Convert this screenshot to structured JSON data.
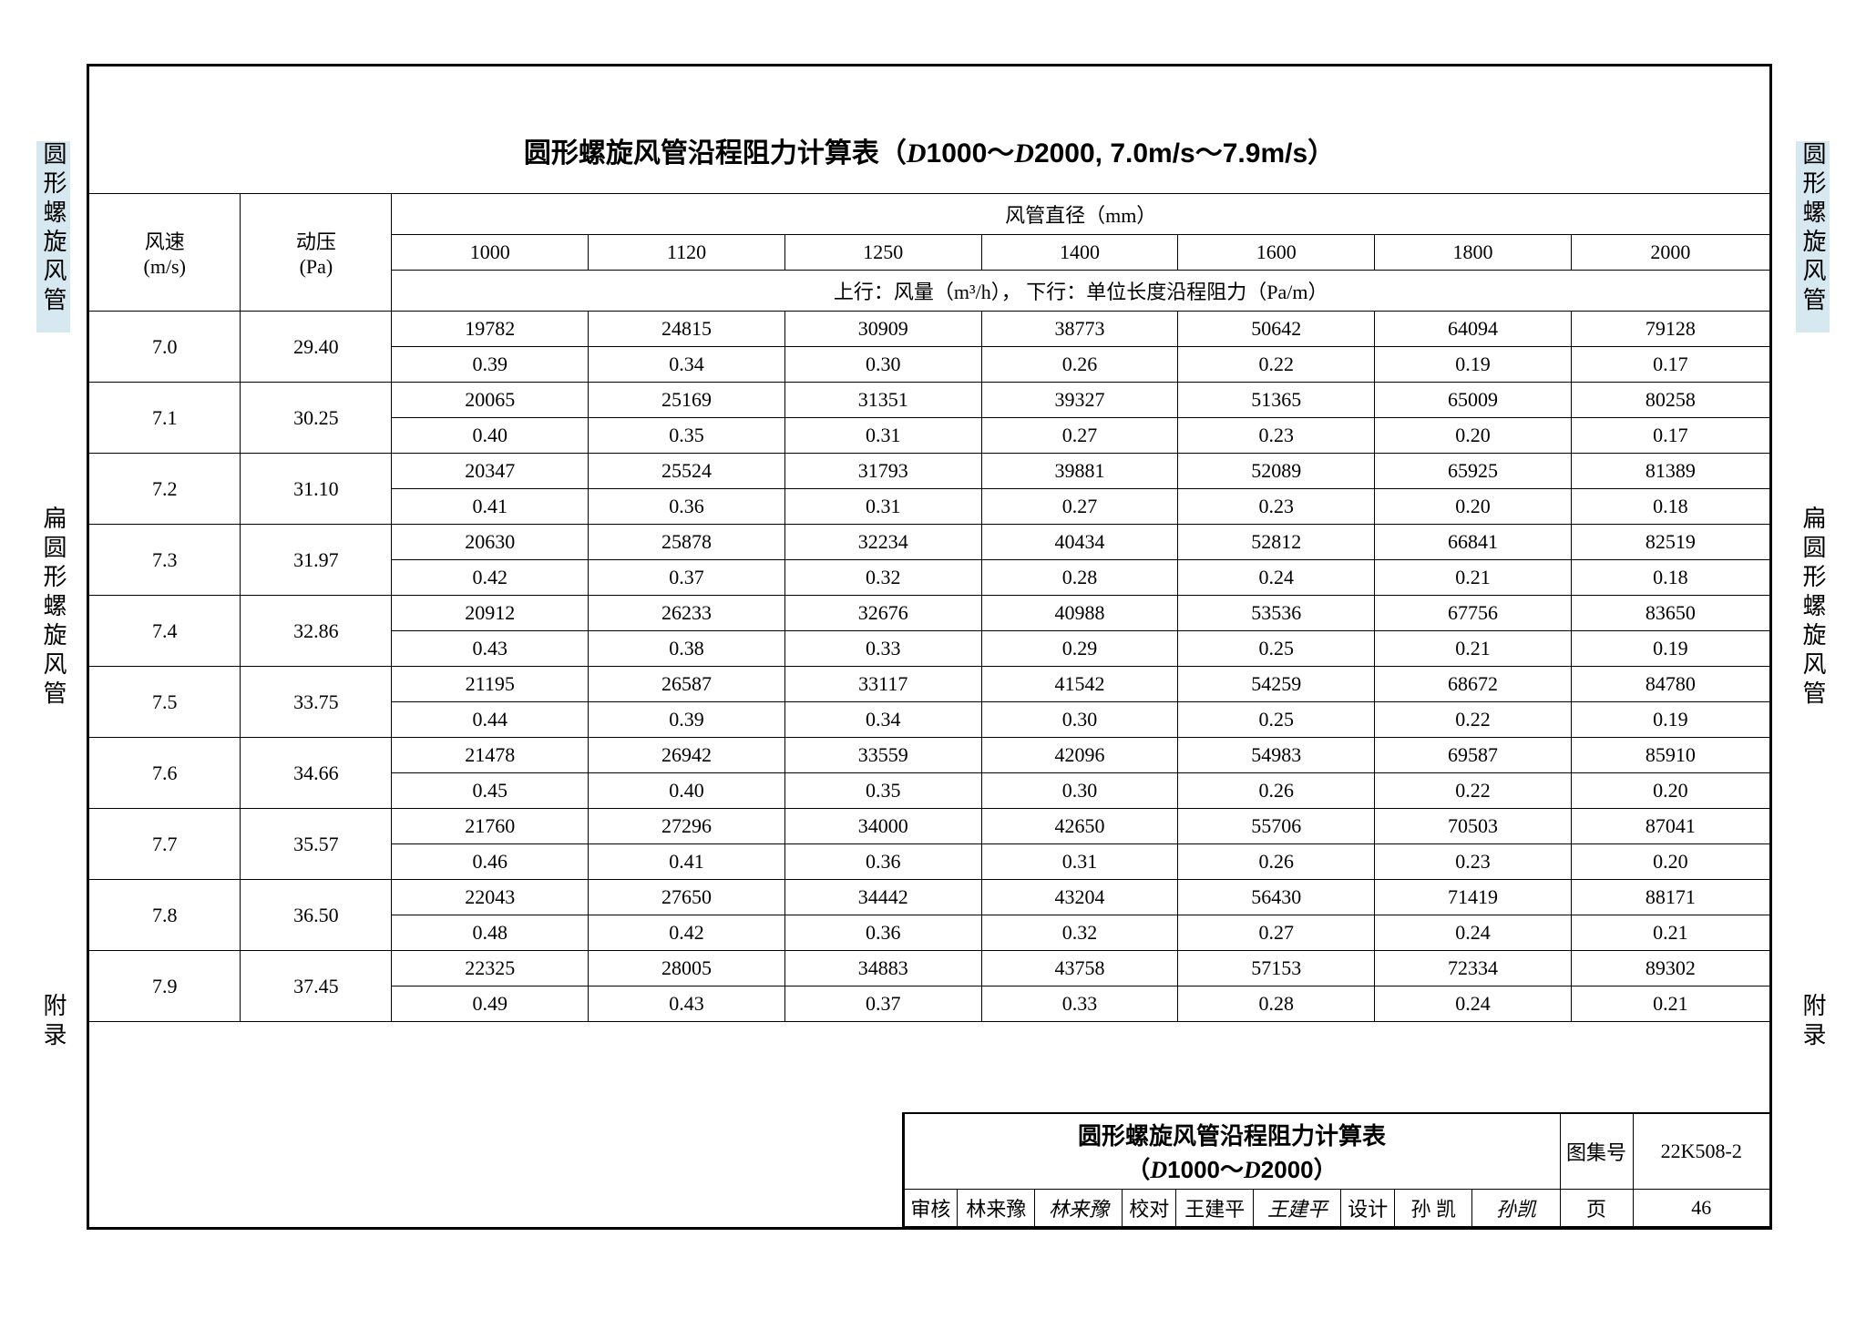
{
  "title_prefix": "圆形螺旋风管沿程阻力计算表（",
  "title_d1": "D",
  "title_mid1": "1000～",
  "title_d2": "D",
  "title_mid2": "2000, 7.0m/s～7.9m/s）",
  "side_labels": {
    "l1": "圆形螺旋风管",
    "l2": "扁圆形螺旋风管",
    "l3": "附录",
    "r1": "圆形螺旋风管",
    "r2": "扁圆形螺旋风管",
    "r3": "附录"
  },
  "headers": {
    "wind_speed": "风速",
    "wind_speed_unit": "(m/s)",
    "dyn_pressure": "动压",
    "dyn_pressure_unit": "(Pa)",
    "diameter_header": "风管直径（mm）",
    "sub_header": "上行：风量（m³/h），  下行：单位长度沿程阻力（Pa/m）",
    "diameters": [
      "1000",
      "1120",
      "1250",
      "1400",
      "1600",
      "1800",
      "2000"
    ]
  },
  "rows": [
    {
      "ws": "7.0",
      "dp": "29.40",
      "flow": [
        "19782",
        "24815",
        "30909",
        "38773",
        "50642",
        "64094",
        "79128"
      ],
      "res": [
        "0.39",
        "0.34",
        "0.30",
        "0.26",
        "0.22",
        "0.19",
        "0.17"
      ]
    },
    {
      "ws": "7.1",
      "dp": "30.25",
      "flow": [
        "20065",
        "25169",
        "31351",
        "39327",
        "51365",
        "65009",
        "80258"
      ],
      "res": [
        "0.40",
        "0.35",
        "0.31",
        "0.27",
        "0.23",
        "0.20",
        "0.17"
      ]
    },
    {
      "ws": "7.2",
      "dp": "31.10",
      "flow": [
        "20347",
        "25524",
        "31793",
        "39881",
        "52089",
        "65925",
        "81389"
      ],
      "res": [
        "0.41",
        "0.36",
        "0.31",
        "0.27",
        "0.23",
        "0.20",
        "0.18"
      ]
    },
    {
      "ws": "7.3",
      "dp": "31.97",
      "flow": [
        "20630",
        "25878",
        "32234",
        "40434",
        "52812",
        "66841",
        "82519"
      ],
      "res": [
        "0.42",
        "0.37",
        "0.32",
        "0.28",
        "0.24",
        "0.21",
        "0.18"
      ]
    },
    {
      "ws": "7.4",
      "dp": "32.86",
      "flow": [
        "20912",
        "26233",
        "32676",
        "40988",
        "53536",
        "67756",
        "83650"
      ],
      "res": [
        "0.43",
        "0.38",
        "0.33",
        "0.29",
        "0.25",
        "0.21",
        "0.19"
      ]
    },
    {
      "ws": "7.5",
      "dp": "33.75",
      "flow": [
        "21195",
        "26587",
        "33117",
        "41542",
        "54259",
        "68672",
        "84780"
      ],
      "res": [
        "0.44",
        "0.39",
        "0.34",
        "0.30",
        "0.25",
        "0.22",
        "0.19"
      ]
    },
    {
      "ws": "7.6",
      "dp": "34.66",
      "flow": [
        "21478",
        "26942",
        "33559",
        "42096",
        "54983",
        "69587",
        "85910"
      ],
      "res": [
        "0.45",
        "0.40",
        "0.35",
        "0.30",
        "0.26",
        "0.22",
        "0.20"
      ]
    },
    {
      "ws": "7.7",
      "dp": "35.57",
      "flow": [
        "21760",
        "27296",
        "34000",
        "42650",
        "55706",
        "70503",
        "87041"
      ],
      "res": [
        "0.46",
        "0.41",
        "0.36",
        "0.31",
        "0.26",
        "0.23",
        "0.20"
      ]
    },
    {
      "ws": "7.8",
      "dp": "36.50",
      "flow": [
        "22043",
        "27650",
        "34442",
        "43204",
        "56430",
        "71419",
        "88171"
      ],
      "res": [
        "0.48",
        "0.42",
        "0.36",
        "0.32",
        "0.27",
        "0.24",
        "0.21"
      ]
    },
    {
      "ws": "7.9",
      "dp": "37.45",
      "flow": [
        "22325",
        "28005",
        "34883",
        "43758",
        "57153",
        "72334",
        "89302"
      ],
      "res": [
        "0.49",
        "0.43",
        "0.37",
        "0.33",
        "0.28",
        "0.24",
        "0.21"
      ]
    }
  ],
  "footer": {
    "title_line1": "圆形螺旋风管沿程阻力计算表",
    "title_line2_pre": "（",
    "title_line2_d1": "D",
    "title_line2_mid": "1000～",
    "title_line2_d2": "D",
    "title_line2_post": "2000）",
    "drawing_set_label": "图集号",
    "drawing_set": "22K508-2",
    "review_label": "审核",
    "review_name": "林来豫",
    "review_sig": "林来豫",
    "check_label": "校对",
    "check_name": "王建平",
    "check_sig": "王建平",
    "design_label": "设计",
    "design_name": "孙  凯",
    "design_sig": "孙凯",
    "page_label": "页",
    "page": "46"
  }
}
